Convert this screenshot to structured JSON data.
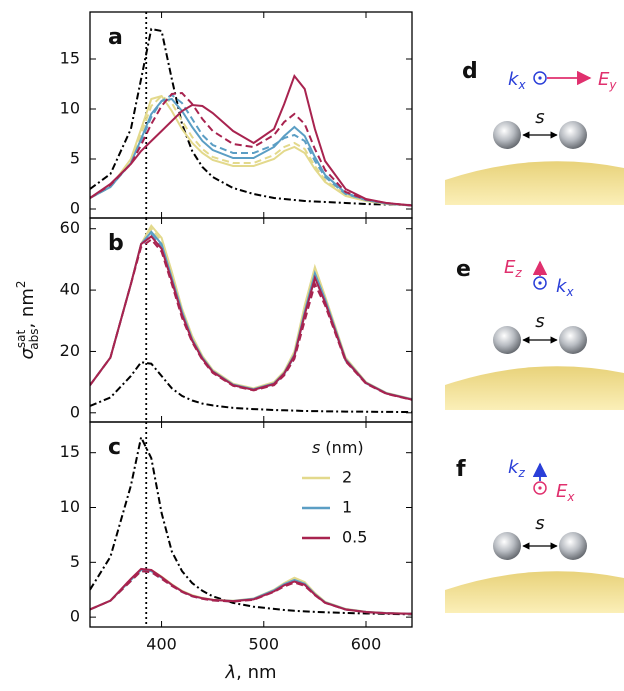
{
  "chart_data": [
    {
      "type": "line",
      "panel_label": "a",
      "xlim": [
        330,
        645
      ],
      "ylim": [
        -0.9,
        19.7
      ],
      "yticks": [
        0,
        5,
        10,
        15
      ],
      "vline": 385,
      "x": [
        330,
        350,
        370,
        380,
        390,
        400,
        410,
        420,
        430,
        440,
        450,
        470,
        490,
        510,
        520,
        530,
        540,
        550,
        560,
        580,
        600,
        620,
        645
      ],
      "series": [
        {
          "color": "#000000",
          "dash": "dashdot",
          "values": [
            2.0,
            3.5,
            8,
            13,
            18,
            17.8,
            13,
            8.5,
            5.8,
            4.2,
            3.2,
            2.1,
            1.5,
            1.1,
            1,
            0.9,
            0.8,
            0.75,
            0.7,
            0.6,
            0.5,
            0.45,
            0.4
          ]
        },
        {
          "color": "#e3d98c",
          "dash": "solid",
          "values": [
            1.1,
            2.2,
            5,
            8,
            11,
            11.3,
            9.8,
            8,
            6.6,
            5.6,
            4.9,
            4.3,
            4.3,
            5,
            5.8,
            6.2,
            5.6,
            4,
            2.7,
            1.3,
            0.8,
            0.5,
            0.35
          ]
        },
        {
          "color": "#e3d98c",
          "dash": "dashed",
          "values": [
            1.1,
            2.2,
            4.8,
            7.5,
            10.3,
            11.3,
            10.6,
            8.8,
            7.2,
            6,
            5.2,
            4.6,
            4.6,
            5.4,
            6.2,
            6.6,
            6,
            4.3,
            2.9,
            1.4,
            0.85,
            0.55,
            0.35
          ]
        },
        {
          "color": "#5b9ec4",
          "dash": "solid",
          "values": [
            1.1,
            2.2,
            4.6,
            7,
            9.5,
            10.8,
            11,
            9.8,
            8.2,
            6.8,
            5.9,
            5.1,
            5.1,
            6.2,
            7.3,
            8.2,
            7.3,
            5.2,
            3.4,
            1.6,
            0.9,
            0.55,
            0.35
          ]
        },
        {
          "color": "#5b9ec4",
          "dash": "dashed",
          "values": [
            1.1,
            2.2,
            4.6,
            6.8,
            9.2,
            10.8,
            11.4,
            10.6,
            9,
            7.4,
            6.4,
            5.6,
            5.6,
            6.4,
            7.1,
            7.4,
            6.8,
            4.8,
            3.2,
            1.5,
            0.9,
            0.55,
            0.35
          ]
        },
        {
          "color": "#a8234f",
          "dash": "solid",
          "values": [
            1.1,
            2.5,
            4.5,
            5.8,
            6.8,
            7.8,
            8.8,
            9.8,
            10.4,
            10.3,
            9.6,
            7.8,
            6.6,
            8,
            10.5,
            13.3,
            12,
            8,
            4.8,
            2,
            1,
            0.6,
            0.35
          ]
        },
        {
          "color": "#a8234f",
          "dash": "dashed",
          "values": [
            1.1,
            2.4,
            4.5,
            6.4,
            8.5,
            10.3,
            11.5,
            11.6,
            10.5,
            9,
            7.8,
            6.5,
            6.2,
            7.4,
            8.7,
            9.5,
            8.5,
            6,
            3.9,
            1.7,
            0.95,
            0.6,
            0.35
          ]
        }
      ]
    },
    {
      "type": "line",
      "panel_label": "b",
      "xlim": [
        330,
        645
      ],
      "ylim": [
        -3,
        63.5
      ],
      "yticks": [
        0,
        20,
        40,
        60
      ],
      "vline": 385,
      "ylabel": {
        "symbol": "σ",
        "sub": "abs",
        "sup": "sat",
        "unit": ", nm",
        "unit_sup": "2"
      },
      "x": [
        330,
        350,
        370,
        380,
        390,
        400,
        410,
        420,
        430,
        440,
        450,
        470,
        490,
        510,
        520,
        530,
        540,
        550,
        560,
        580,
        600,
        620,
        645
      ],
      "series": [
        {
          "color": "#000000",
          "dash": "dashdot",
          "values": [
            2.2,
            5,
            12,
            16.5,
            16,
            12,
            8,
            5.5,
            4,
            3,
            2.4,
            1.6,
            1.2,
            0.9,
            0.8,
            0.7,
            0.6,
            0.55,
            0.5,
            0.4,
            0.35,
            0.3,
            0.25
          ]
        },
        {
          "color": "#e3d98c",
          "dash": "solid",
          "values": [
            9,
            18,
            42,
            55,
            61,
            57,
            46,
            34,
            25,
            18.5,
            14,
            9.5,
            8,
            10,
            13.5,
            20,
            35,
            47.5,
            38,
            18,
            10,
            6.5,
            4.5
          ]
        },
        {
          "color": "#e3d98c",
          "dash": "dashed",
          "values": [
            9,
            18,
            42,
            55,
            60,
            56,
            45,
            33,
            24,
            18,
            13.8,
            9.3,
            7.8,
            9.6,
            13,
            19,
            33,
            45.5,
            37,
            17.5,
            9.8,
            6.4,
            4.4
          ]
        },
        {
          "color": "#5b9ec4",
          "dash": "solid",
          "values": [
            9,
            18,
            42,
            55,
            59,
            55,
            44,
            33,
            24,
            18,
            13.6,
            9.2,
            7.7,
            9.6,
            13,
            19,
            33,
            45.5,
            37,
            17.5,
            9.8,
            6.4,
            4.4
          ]
        },
        {
          "color": "#5b9ec4",
          "dash": "dashed",
          "values": [
            9,
            18,
            42,
            54.5,
            58,
            54,
            43,
            32,
            23.5,
            17.6,
            13.4,
            9,
            7.5,
            9.3,
            12.6,
            18.4,
            32,
            44,
            36,
            17,
            9.6,
            6.3,
            4.3
          ]
        },
        {
          "color": "#a8234f",
          "dash": "solid",
          "values": [
            9,
            18,
            42,
            55,
            57.5,
            53.5,
            43,
            32,
            23.5,
            17.6,
            13.4,
            9,
            7.5,
            9.4,
            12.8,
            18.6,
            32,
            44,
            36,
            17.2,
            9.7,
            6.3,
            4.3
          ]
        },
        {
          "color": "#a8234f",
          "dash": "dashed",
          "values": [
            9,
            18,
            42,
            54,
            56.5,
            52.5,
            42,
            31,
            23,
            17.2,
            13,
            8.8,
            7.3,
            9,
            12.2,
            17.6,
            30,
            42,
            35,
            16.8,
            9.5,
            6.2,
            4.2
          ]
        }
      ]
    },
    {
      "type": "line",
      "panel_label": "c",
      "xlim": [
        330,
        645
      ],
      "ylim": [
        -0.9,
        17.8
      ],
      "xticks": [
        400,
        500,
        600
      ],
      "yticks": [
        0,
        5,
        10,
        15
      ],
      "vline": 385,
      "xlabel": {
        "symbol": "λ",
        "unit": ", nm"
      },
      "legend": "upper right",
      "legend_title": {
        "symbol": "s",
        "unit": " (nm)"
      },
      "x": [
        330,
        350,
        370,
        380,
        390,
        400,
        410,
        420,
        430,
        440,
        450,
        470,
        490,
        510,
        520,
        530,
        540,
        550,
        560,
        580,
        600,
        620,
        645
      ],
      "series": [
        {
          "color": "#000000",
          "dash": "dashdot",
          "values": [
            2.5,
            5.5,
            12,
            16.4,
            14.5,
            9.5,
            6,
            4.2,
            3.1,
            2.4,
            1.9,
            1.3,
            0.95,
            0.75,
            0.65,
            0.58,
            0.52,
            0.48,
            0.44,
            0.38,
            0.33,
            0.3,
            0.25
          ]
        },
        {
          "name": "2",
          "color": "#e3d98c",
          "dash": "solid",
          "values": [
            0.7,
            1.5,
            3.4,
            4.3,
            4.3,
            3.7,
            3,
            2.4,
            2,
            1.75,
            1.6,
            1.5,
            1.7,
            2.5,
            3.1,
            3.6,
            3.2,
            2.2,
            1.4,
            0.75,
            0.5,
            0.38,
            0.3
          ]
        },
        {
          "color": "#e3d98c",
          "dash": "dashed",
          "values": [
            0.7,
            1.5,
            3.3,
            4.2,
            4.2,
            3.6,
            2.9,
            2.35,
            1.95,
            1.7,
            1.55,
            1.45,
            1.65,
            2.4,
            3,
            3.45,
            3.1,
            2.1,
            1.35,
            0.72,
            0.48,
            0.37,
            0.3
          ]
        },
        {
          "name": "1",
          "color": "#5b9ec4",
          "dash": "solid",
          "values": [
            0.7,
            1.5,
            3.4,
            4.3,
            4.2,
            3.6,
            2.95,
            2.35,
            1.95,
            1.72,
            1.57,
            1.47,
            1.67,
            2.45,
            3,
            3.4,
            3.05,
            2.1,
            1.35,
            0.72,
            0.48,
            0.37,
            0.3
          ]
        },
        {
          "color": "#5b9ec4",
          "dash": "dashed",
          "values": [
            0.7,
            1.5,
            3.3,
            4.2,
            4.1,
            3.5,
            2.9,
            2.3,
            1.9,
            1.68,
            1.53,
            1.43,
            1.6,
            2.35,
            2.9,
            3.3,
            2.95,
            2.05,
            1.32,
            0.7,
            0.47,
            0.36,
            0.3
          ]
        },
        {
          "name": "0.5",
          "color": "#a8234f",
          "dash": "solid",
          "values": [
            0.7,
            1.5,
            3.5,
            4.4,
            4.3,
            3.65,
            2.95,
            2.35,
            1.95,
            1.72,
            1.57,
            1.46,
            1.62,
            2.35,
            2.9,
            3.25,
            2.95,
            2.05,
            1.32,
            0.7,
            0.47,
            0.36,
            0.3
          ]
        },
        {
          "color": "#a8234f",
          "dash": "dashed",
          "values": [
            0.7,
            1.5,
            3.3,
            4.2,
            4.1,
            3.5,
            2.85,
            2.3,
            1.9,
            1.67,
            1.52,
            1.42,
            1.58,
            2.3,
            2.8,
            3.15,
            2.85,
            2.0,
            1.3,
            0.7,
            0.46,
            0.36,
            0.3
          ]
        }
      ]
    }
  ],
  "diagrams": [
    {
      "label": "d",
      "k": "k",
      "k_sub": "x",
      "e": "E",
      "e_sub": "y",
      "s": "s"
    },
    {
      "label": "e",
      "e": "E",
      "e_sub": "z",
      "k": "k",
      "k_sub": "x",
      "s": "s"
    },
    {
      "label": "f",
      "k": "k",
      "k_sub": "z",
      "e": "E",
      "e_sub": "x",
      "s": "s"
    }
  ]
}
